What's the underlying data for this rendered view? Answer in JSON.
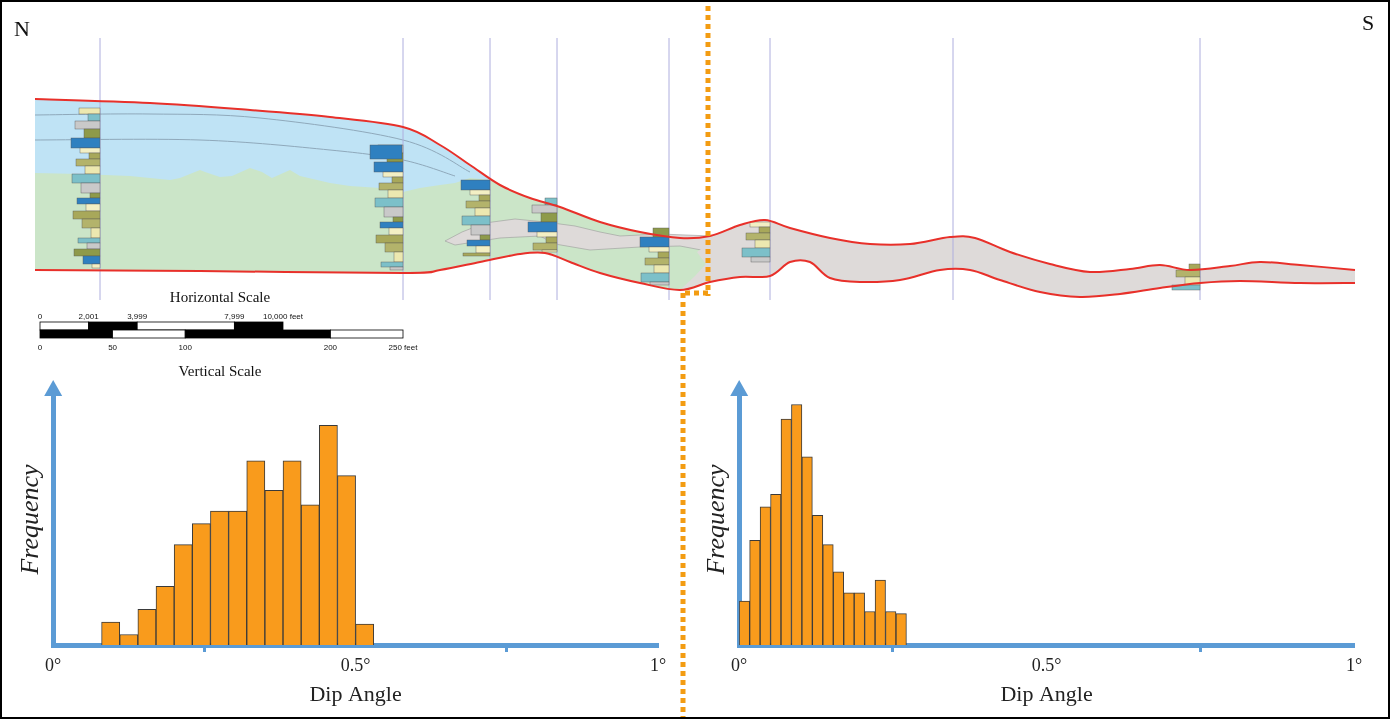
{
  "diagram": {
    "north_label": "N",
    "south_label": "S",
    "horizontal_scale": {
      "title": "Horizontal Scale",
      "ticks": [
        0,
        {
          "value": 2001,
          "label": "2,001"
        },
        {
          "value": 3999,
          "label": "3,999"
        },
        {
          "value": 7999,
          "label": "7,999"
        },
        {
          "value": 10000,
          "label": "10,000 feet"
        }
      ]
    },
    "vertical_scale": {
      "title": "Vertical Scale",
      "ticks": [
        0,
        50,
        100,
        200,
        {
          "value": 250,
          "label": "250 feet"
        }
      ]
    }
  },
  "chart_data": [
    {
      "type": "histogram",
      "x_label": "Dip Angle",
      "y_label": "Frequency",
      "bins": [
        0.08,
        0.11,
        0.14,
        0.17,
        0.2,
        0.23,
        0.26,
        0.29,
        0.32,
        0.35,
        0.38,
        0.41,
        0.44,
        0.47,
        0.5,
        0.53
      ],
      "values": [
        11,
        5,
        17,
        28,
        48,
        58,
        64,
        64,
        88,
        74,
        88,
        67,
        105,
        81,
        10
      ],
      "color": "#f99b1c",
      "xlim": [
        0,
        1
      ],
      "xticks": [
        {
          "value": 0,
          "label": "0°"
        },
        {
          "value": 0.5,
          "label": "0.5°"
        },
        {
          "value": 1,
          "label": "1°"
        }
      ],
      "ylim": [
        0,
        120
      ],
      "tick_labels": "x",
      "grid": false
    },
    {
      "type": "histogram",
      "x_label": "Dip Angle",
      "y_label": "Frequency",
      "bins": [
        0,
        0.017,
        0.034,
        0.051,
        0.068,
        0.085,
        0.102,
        0.119,
        0.136,
        0.153,
        0.17,
        0.187,
        0.204,
        0.221,
        0.238,
        0.255,
        0.272
      ],
      "values": [
        21,
        50,
        66,
        72,
        108,
        115,
        90,
        62,
        48,
        35,
        25,
        25,
        16,
        31,
        16,
        15
      ],
      "color": "#f99b1c",
      "xlim": [
        0,
        1
      ],
      "xticks": [
        {
          "value": 0,
          "label": "0°"
        },
        {
          "value": 0.5,
          "label": "0.5°"
        },
        {
          "value": 1,
          "label": "1°"
        }
      ],
      "ylim": [
        0,
        120
      ],
      "tick_labels": "x",
      "grid": false
    }
  ]
}
